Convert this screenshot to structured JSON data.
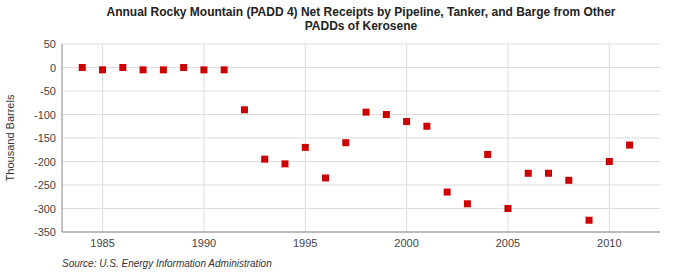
{
  "chart_data": {
    "type": "scatter",
    "title": "Annual Rocky Mountain (PADD 4) Net Receipts by Pipeline, Tanker, and Barge from Other\nPADDs of Kerosene",
    "y_label": "Thousand Barrels",
    "source": "Source: U.S. Energy Information Administration",
    "x": [
      1984,
      1985,
      1986,
      1987,
      1988,
      1989,
      1990,
      1991,
      1992,
      1993,
      1994,
      1995,
      1996,
      1997,
      1998,
      1999,
      2000,
      2001,
      2002,
      2003,
      2004,
      2005,
      2006,
      2007,
      2008,
      2009,
      2010,
      2011
    ],
    "values": [
      0,
      -5,
      0,
      -5,
      -5,
      0,
      -5,
      -5,
      -90,
      -195,
      -205,
      -170,
      -235,
      -160,
      -95,
      -100,
      -115,
      -125,
      -265,
      -290,
      -185,
      -300,
      -225,
      -225,
      -240,
      -325,
      -200,
      -165
    ],
    "color": "#cc0000",
    "marker": "square",
    "xlim": [
      1983,
      2012.5
    ],
    "xticks": [
      1985,
      1990,
      1995,
      2000,
      2005,
      2010
    ],
    "ylim": [
      -350,
      50
    ],
    "yticks": [
      50,
      0,
      -50,
      -100,
      -150,
      -200,
      -250,
      -300,
      -350
    ],
    "grid": true
  }
}
